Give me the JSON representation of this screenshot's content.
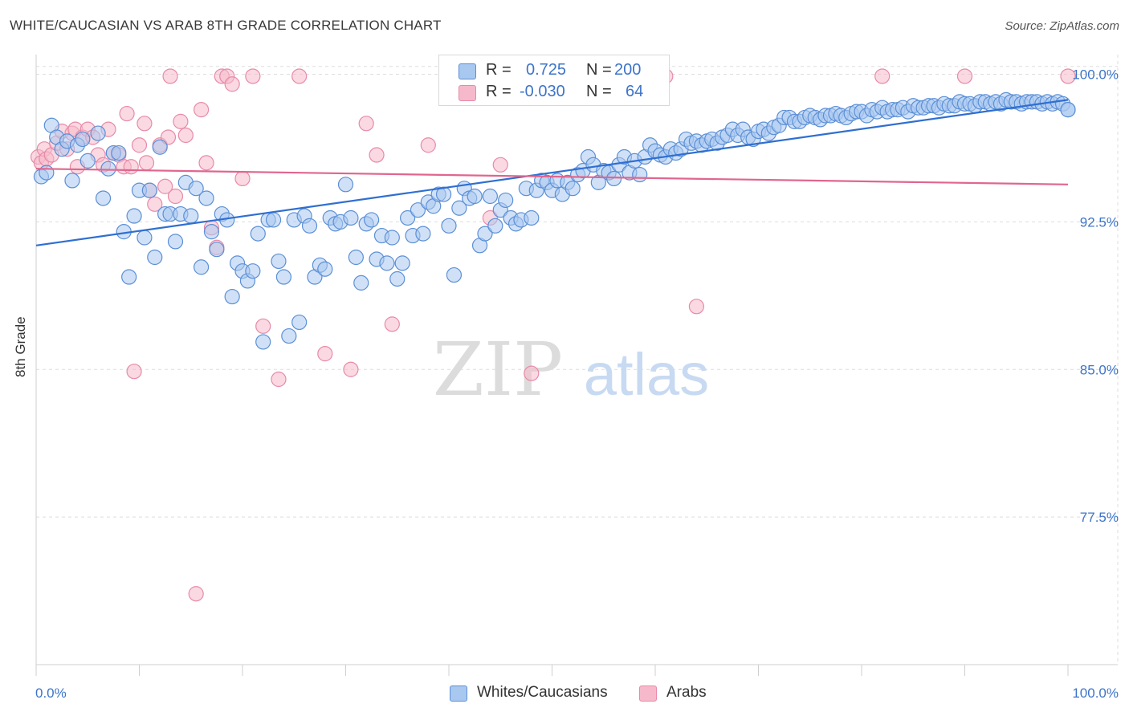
{
  "title": "WHITE/CAUCASIAN VS ARAB 8TH GRADE CORRELATION CHART",
  "source": "Source: ZipAtlas.com",
  "colors": {
    "blue_fill": "#a9c8f0",
    "blue_stroke": "#5b8fd6",
    "blue_line": "#2f6fd1",
    "pink_fill": "#f5b9cb",
    "pink_stroke": "#e88aa8",
    "pink_line": "#e0668e",
    "tick_label": "#3d74c9",
    "grid": "#dddddd"
  },
  "legend": {
    "rows": [
      {
        "r_label": "R =",
        "r_value": "0.725",
        "n_label": "N =",
        "n_value": "200"
      },
      {
        "r_label": "R =",
        "r_value": "-0.030",
        "n_label": "N =",
        "n_value": "64"
      }
    ]
  },
  "bottom_legend": {
    "blue": "Whites/Caucasians",
    "pink": "Arabs"
  },
  "chart_data": {
    "type": "scatter",
    "title": "WHITE/CAUCASIAN VS ARAB 8TH GRADE CORRELATION CHART",
    "xlabel": "",
    "ylabel": "8th Grade",
    "xlim": [
      0,
      100
    ],
    "ylim": [
      70.0,
      101.0
    ],
    "x_tick_labels": [
      "0.0%",
      "100.0%"
    ],
    "y_ticks": [
      77.5,
      85.0,
      92.5,
      100.0
    ],
    "y_tick_labels": [
      "77.5%",
      "85.0%",
      "92.5%",
      "100.0%"
    ],
    "grid": true,
    "legend_position": "top-center",
    "watermark": {
      "zip": "ZIP",
      "atlas": "atlas"
    },
    "series": [
      {
        "name": "Whites/Caucasians",
        "color": "#a9c8f0",
        "r": 0.725,
        "n": 200,
        "trend": {
          "x": [
            0,
            100
          ],
          "y": [
            91.3,
            98.7
          ]
        },
        "points": [
          [
            0.5,
            94.8
          ],
          [
            1,
            95.0
          ],
          [
            1.5,
            97.4
          ],
          [
            2,
            96.8
          ],
          [
            2.5,
            96.2
          ],
          [
            3,
            96.6
          ],
          [
            3.5,
            94.6
          ],
          [
            4,
            96.4
          ],
          [
            4.5,
            96.7
          ],
          [
            5,
            95.6
          ],
          [
            6,
            97.0
          ],
          [
            6.5,
            93.7
          ],
          [
            7,
            95.2
          ],
          [
            7.5,
            96.0
          ],
          [
            8,
            96.0
          ],
          [
            8.5,
            92.0
          ],
          [
            9,
            89.7
          ],
          [
            9.5,
            92.8
          ],
          [
            10,
            94.1
          ],
          [
            10.5,
            91.7
          ],
          [
            11,
            94.1
          ],
          [
            11.5,
            90.7
          ],
          [
            12,
            96.3
          ],
          [
            12.5,
            92.9
          ],
          [
            13,
            92.9
          ],
          [
            13.5,
            91.5
          ],
          [
            14,
            92.9
          ],
          [
            14.5,
            94.5
          ],
          [
            15,
            92.8
          ],
          [
            15.5,
            94.2
          ],
          [
            16,
            90.2
          ],
          [
            16.5,
            93.7
          ],
          [
            17,
            92.0
          ],
          [
            17.5,
            91.1
          ],
          [
            18,
            92.9
          ],
          [
            18.5,
            92.6
          ],
          [
            19,
            88.7
          ],
          [
            19.5,
            90.4
          ],
          [
            20,
            90.0
          ],
          [
            20.5,
            89.5
          ],
          [
            21,
            90.0
          ],
          [
            21.5,
            91.9
          ],
          [
            22,
            86.4
          ],
          [
            22.5,
            92.6
          ],
          [
            23,
            92.6
          ],
          [
            23.5,
            90.5
          ],
          [
            24,
            89.7
          ],
          [
            24.5,
            86.7
          ],
          [
            25,
            92.6
          ],
          [
            25.5,
            87.4
          ],
          [
            26,
            92.8
          ],
          [
            26.5,
            92.3
          ],
          [
            27,
            89.7
          ],
          [
            27.5,
            90.3
          ],
          [
            28,
            90.1
          ],
          [
            28.5,
            92.7
          ],
          [
            29,
            92.4
          ],
          [
            29.5,
            92.5
          ],
          [
            30,
            94.4
          ],
          [
            30.5,
            92.7
          ],
          [
            31,
            90.7
          ],
          [
            31.5,
            89.4
          ],
          [
            32,
            92.4
          ],
          [
            32.5,
            92.6
          ],
          [
            33,
            90.6
          ],
          [
            33.5,
            91.8
          ],
          [
            34,
            90.4
          ],
          [
            34.5,
            91.7
          ],
          [
            35,
            89.6
          ],
          [
            35.5,
            90.4
          ],
          [
            36,
            92.7
          ],
          [
            36.5,
            91.8
          ],
          [
            37,
            93.1
          ],
          [
            37.5,
            91.9
          ],
          [
            38,
            93.5
          ],
          [
            38.5,
            93.3
          ],
          [
            39,
            93.9
          ],
          [
            39.5,
            93.9
          ],
          [
            40,
            92.3
          ],
          [
            40.5,
            89.8
          ],
          [
            41,
            93.2
          ],
          [
            41.5,
            94.2
          ],
          [
            42,
            93.7
          ],
          [
            42.5,
            93.8
          ],
          [
            43,
            91.3
          ],
          [
            43.5,
            91.9
          ],
          [
            44,
            93.8
          ],
          [
            44.5,
            92.3
          ],
          [
            45,
            93.1
          ],
          [
            45.5,
            93.6
          ],
          [
            46,
            92.7
          ],
          [
            46.5,
            92.4
          ],
          [
            47,
            92.6
          ],
          [
            47.5,
            94.2
          ],
          [
            48,
            92.7
          ],
          [
            48.5,
            94.1
          ],
          [
            49,
            94.6
          ],
          [
            49.5,
            94.5
          ],
          [
            50,
            94.1
          ],
          [
            50.5,
            94.6
          ],
          [
            51,
            93.9
          ],
          [
            51.5,
            94.5
          ],
          [
            52,
            94.2
          ],
          [
            52.5,
            94.9
          ],
          [
            53,
            95.1
          ],
          [
            53.5,
            95.8
          ],
          [
            54,
            95.4
          ],
          [
            54.5,
            94.5
          ],
          [
            55,
            95.1
          ],
          [
            55.5,
            95.0
          ],
          [
            56,
            94.7
          ],
          [
            56.5,
            95.4
          ],
          [
            57,
            95.8
          ],
          [
            57.5,
            95.0
          ],
          [
            58,
            95.6
          ],
          [
            58.5,
            94.9
          ],
          [
            59,
            95.8
          ],
          [
            59.5,
            96.4
          ],
          [
            60,
            96.1
          ],
          [
            60.5,
            95.9
          ],
          [
            61,
            95.8
          ],
          [
            61.5,
            96.2
          ],
          [
            62,
            96.0
          ],
          [
            62.5,
            96.2
          ],
          [
            63,
            96.7
          ],
          [
            63.5,
            96.5
          ],
          [
            64,
            96.6
          ],
          [
            64.5,
            96.4
          ],
          [
            65,
            96.6
          ],
          [
            65.5,
            96.7
          ],
          [
            66,
            96.5
          ],
          [
            66.5,
            96.8
          ],
          [
            67,
            96.9
          ],
          [
            67.5,
            97.2
          ],
          [
            68,
            96.9
          ],
          [
            68.5,
            97.2
          ],
          [
            69,
            96.8
          ],
          [
            69.5,
            96.7
          ],
          [
            70,
            97.1
          ],
          [
            70.5,
            97.2
          ],
          [
            71,
            97.0
          ],
          [
            71.5,
            97.3
          ],
          [
            72,
            97.4
          ],
          [
            72.5,
            97.8
          ],
          [
            73,
            97.8
          ],
          [
            73.5,
            97.6
          ],
          [
            74,
            97.6
          ],
          [
            74.5,
            97.8
          ],
          [
            75,
            97.9
          ],
          [
            75.5,
            97.8
          ],
          [
            76,
            97.7
          ],
          [
            76.5,
            97.9
          ],
          [
            77,
            97.9
          ],
          [
            77.5,
            98.0
          ],
          [
            78,
            97.9
          ],
          [
            78.5,
            97.8
          ],
          [
            79,
            98.0
          ],
          [
            79.5,
            98.1
          ],
          [
            80,
            98.1
          ],
          [
            80.5,
            97.9
          ],
          [
            81,
            98.2
          ],
          [
            81.5,
            98.1
          ],
          [
            82,
            98.3
          ],
          [
            82.5,
            98.1
          ],
          [
            83,
            98.2
          ],
          [
            83.5,
            98.2
          ],
          [
            84,
            98.3
          ],
          [
            84.5,
            98.1
          ],
          [
            85,
            98.4
          ],
          [
            85.5,
            98.3
          ],
          [
            86,
            98.3
          ],
          [
            86.5,
            98.4
          ],
          [
            87,
            98.4
          ],
          [
            87.5,
            98.3
          ],
          [
            88,
            98.5
          ],
          [
            88.5,
            98.4
          ],
          [
            89,
            98.4
          ],
          [
            89.5,
            98.6
          ],
          [
            90,
            98.5
          ],
          [
            90.5,
            98.5
          ],
          [
            91,
            98.4
          ],
          [
            91.5,
            98.6
          ],
          [
            92,
            98.6
          ],
          [
            92.5,
            98.5
          ],
          [
            93,
            98.6
          ],
          [
            93.5,
            98.5
          ],
          [
            94,
            98.7
          ],
          [
            94.5,
            98.6
          ],
          [
            95,
            98.6
          ],
          [
            95.5,
            98.5
          ],
          [
            96,
            98.6
          ],
          [
            96.5,
            98.6
          ],
          [
            97,
            98.6
          ],
          [
            97.5,
            98.5
          ],
          [
            98,
            98.6
          ],
          [
            98.5,
            98.5
          ],
          [
            99,
            98.6
          ],
          [
            99.5,
            98.5
          ],
          [
            100,
            98.2
          ],
          [
            100,
            98.2
          ]
        ]
      },
      {
        "name": "Arabs",
        "color": "#f5b9cb",
        "r": -0.03,
        "n": 64,
        "trend": {
          "x": [
            0,
            100
          ],
          "y": [
            95.2,
            94.4
          ]
        },
        "points": [
          [
            0.2,
            95.8
          ],
          [
            0.5,
            95.5
          ],
          [
            0.8,
            96.2
          ],
          [
            1,
            95.7
          ],
          [
            1.5,
            95.9
          ],
          [
            2,
            96.5
          ],
          [
            2.5,
            97.1
          ],
          [
            3,
            96.2
          ],
          [
            3.5,
            97.0
          ],
          [
            3.8,
            97.2
          ],
          [
            4,
            95.3
          ],
          [
            4.5,
            96.8
          ],
          [
            5,
            97.2
          ],
          [
            5.5,
            96.8
          ],
          [
            6,
            95.9
          ],
          [
            6.5,
            95.4
          ],
          [
            7,
            97.2
          ],
          [
            7.5,
            96.0
          ],
          [
            8,
            95.9
          ],
          [
            8.5,
            95.3
          ],
          [
            8.8,
            98.0
          ],
          [
            9.2,
            95.3
          ],
          [
            9.5,
            84.9
          ],
          [
            10,
            96.4
          ],
          [
            10.5,
            97.5
          ],
          [
            10.7,
            95.5
          ],
          [
            11,
            94.1
          ],
          [
            11.5,
            93.4
          ],
          [
            12,
            96.4
          ],
          [
            12.5,
            94.3
          ],
          [
            12.8,
            96.8
          ],
          [
            13,
            99.9
          ],
          [
            13.5,
            93.8
          ],
          [
            14,
            97.6
          ],
          [
            14.5,
            96.9
          ],
          [
            15.5,
            73.6
          ],
          [
            16,
            98.2
          ],
          [
            16.5,
            95.5
          ],
          [
            17,
            92.2
          ],
          [
            17.5,
            91.2
          ],
          [
            18,
            99.9
          ],
          [
            18.5,
            99.9
          ],
          [
            19,
            99.5
          ],
          [
            20,
            94.7
          ],
          [
            21,
            99.9
          ],
          [
            22,
            87.2
          ],
          [
            23.5,
            84.5
          ],
          [
            25.5,
            99.9
          ],
          [
            28,
            85.8
          ],
          [
            30.5,
            85.0
          ],
          [
            32,
            97.5
          ],
          [
            33,
            95.9
          ],
          [
            34.5,
            87.3
          ],
          [
            38,
            96.4
          ],
          [
            44,
            92.7
          ],
          [
            45,
            95.4
          ],
          [
            47,
            99.9
          ],
          [
            48,
            84.8
          ],
          [
            52,
            99.9
          ],
          [
            61,
            99.9
          ],
          [
            64,
            88.2
          ],
          [
            82,
            99.9
          ],
          [
            90,
            99.9
          ],
          [
            100,
            99.9
          ]
        ]
      }
    ]
  }
}
